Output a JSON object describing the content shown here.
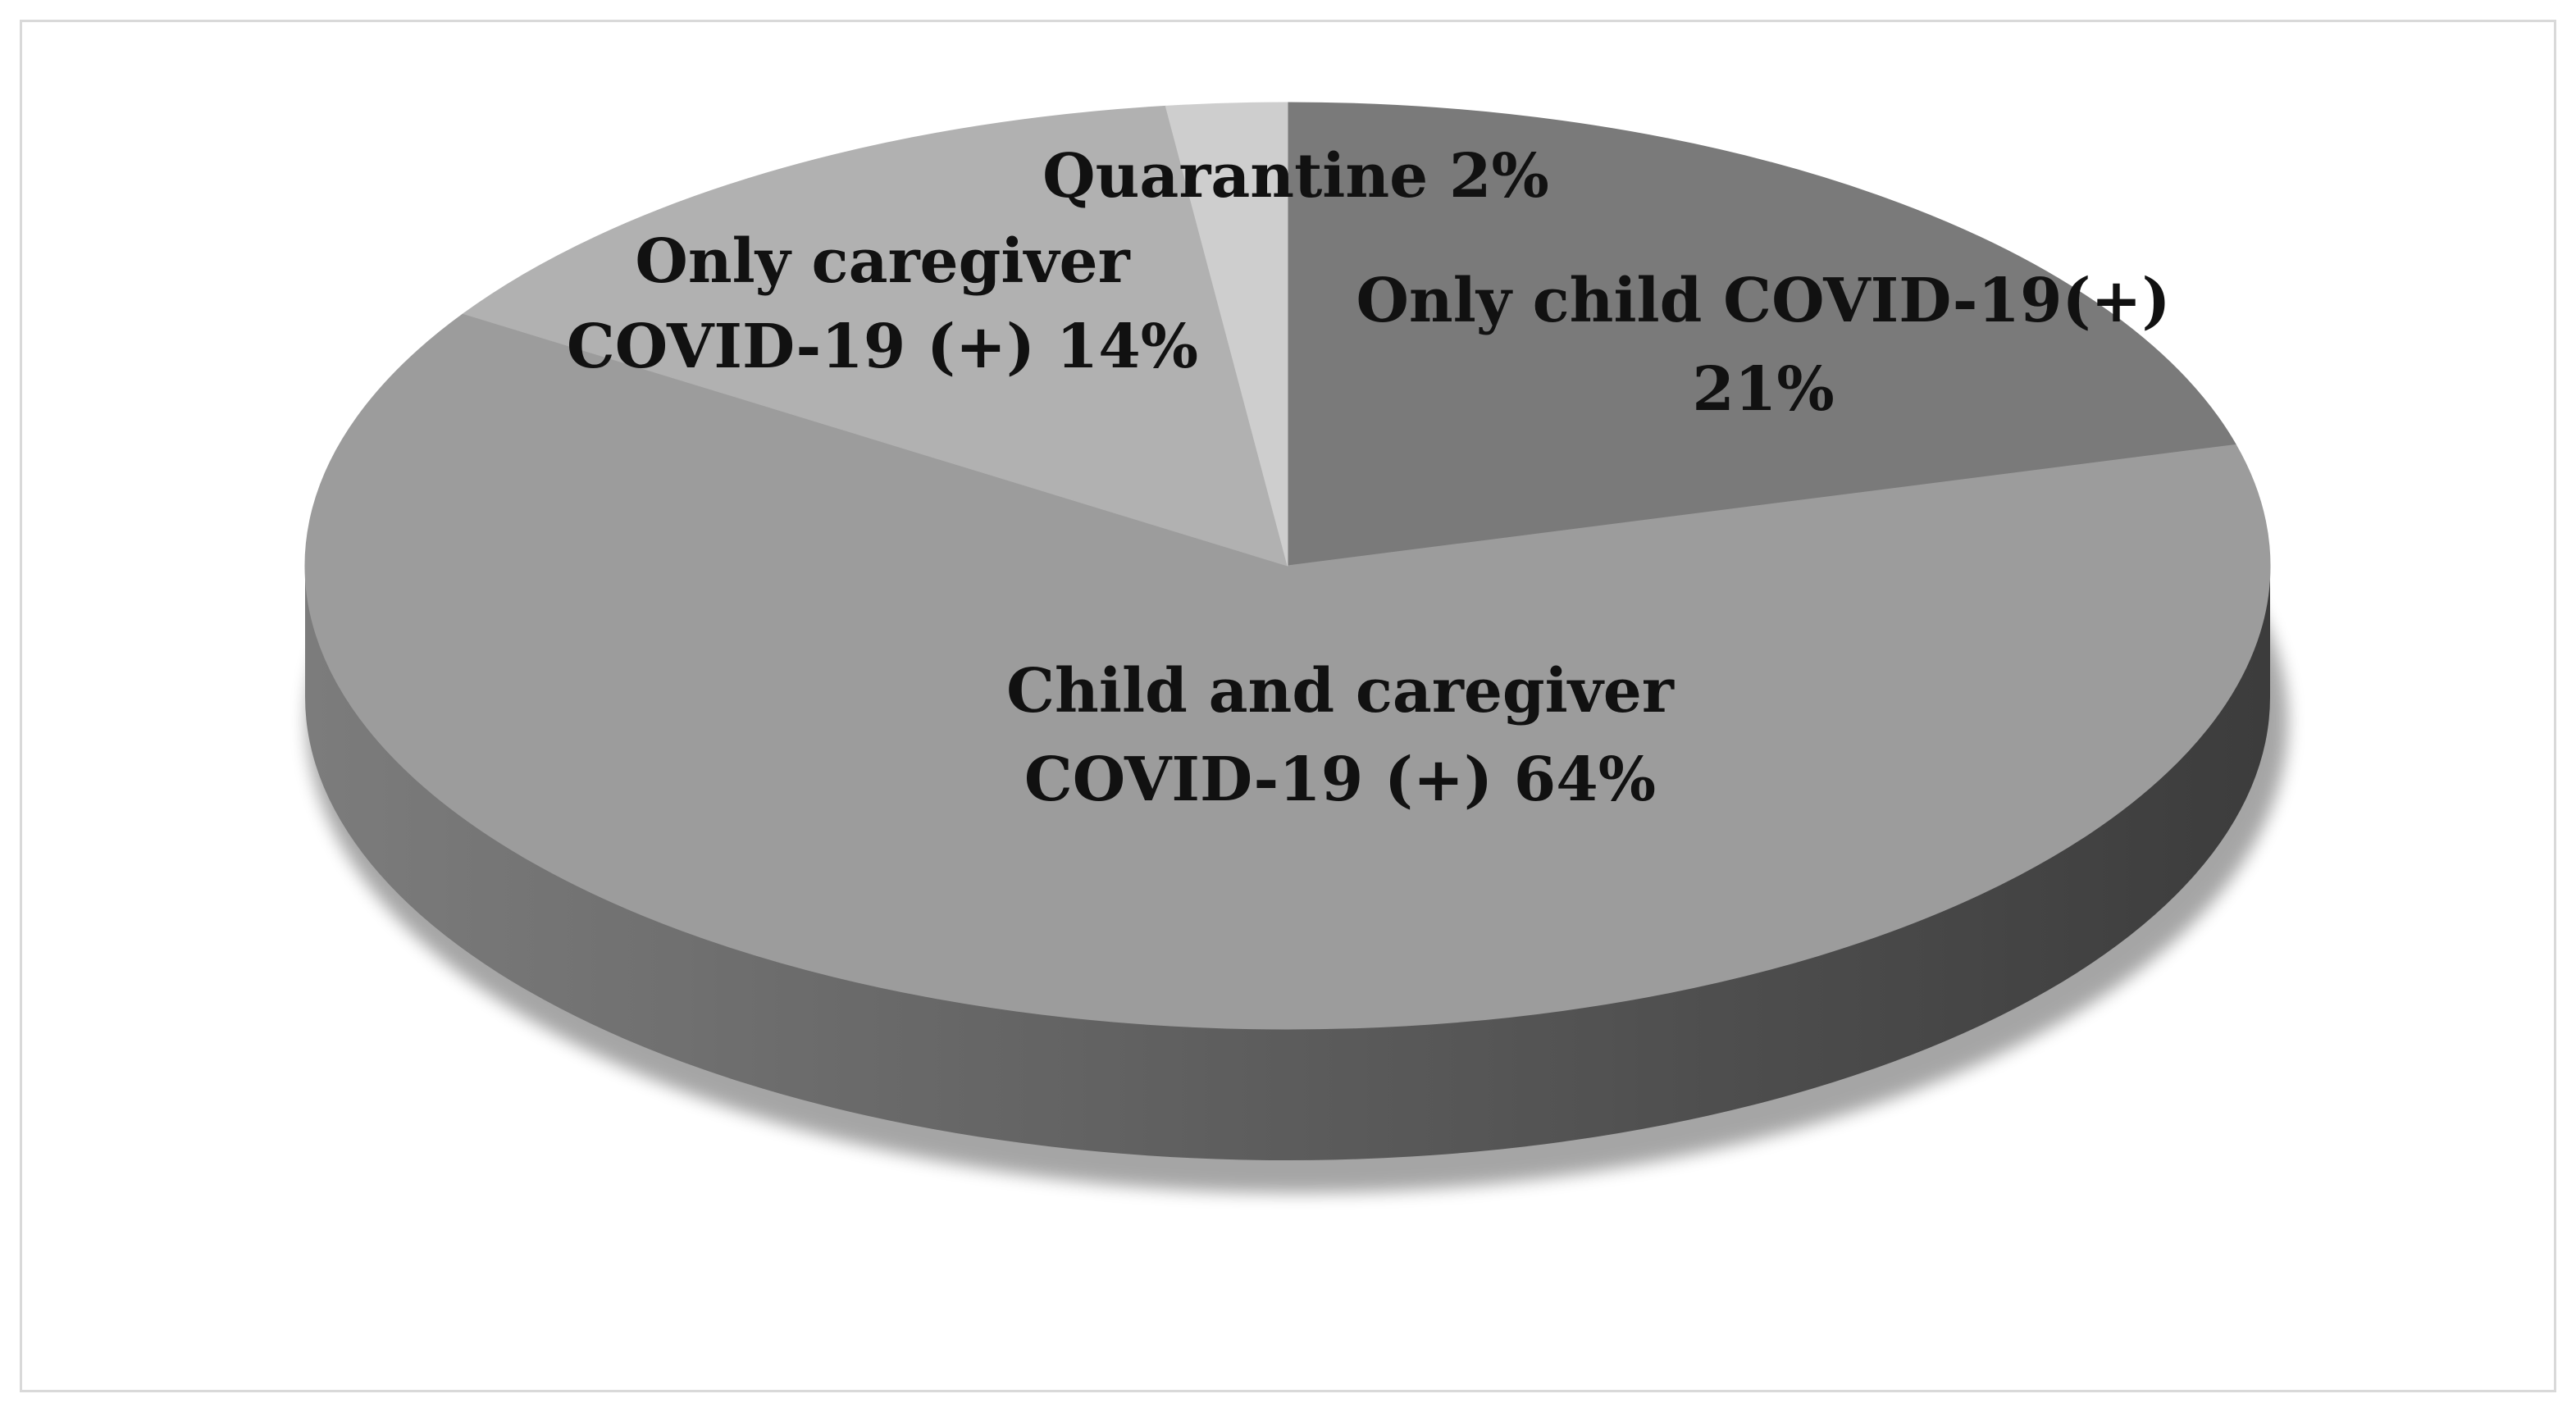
{
  "chart_data": {
    "type": "pie",
    "style": "3d",
    "title": "",
    "slices": [
      {
        "label_lines": [
          "Only child COVID-19(+)",
          "21%"
        ],
        "category": "Only child COVID-19(+)",
        "value": 21,
        "color": "#7a7a7a"
      },
      {
        "label_lines": [
          "Child and caregiver",
          "COVID-19 (+) 64%"
        ],
        "category": "Child and caregiver COVID-19 (+)",
        "value": 64,
        "color": "#9c9c9c"
      },
      {
        "label_lines": [
          "Only caregiver",
          "COVID-19 (+) 14%"
        ],
        "category": "Only caregiver COVID-19 (+)",
        "value": 14,
        "color": "#b1b1b1"
      },
      {
        "label_lines": [
          "Quarantine 2%"
        ],
        "category": "Quarantine",
        "value": 2,
        "color": "#cecece"
      }
    ],
    "side_color_light": "#7c7c7c",
    "side_color_dark": "#3c3c3c",
    "legend": "none",
    "grid": false
  }
}
